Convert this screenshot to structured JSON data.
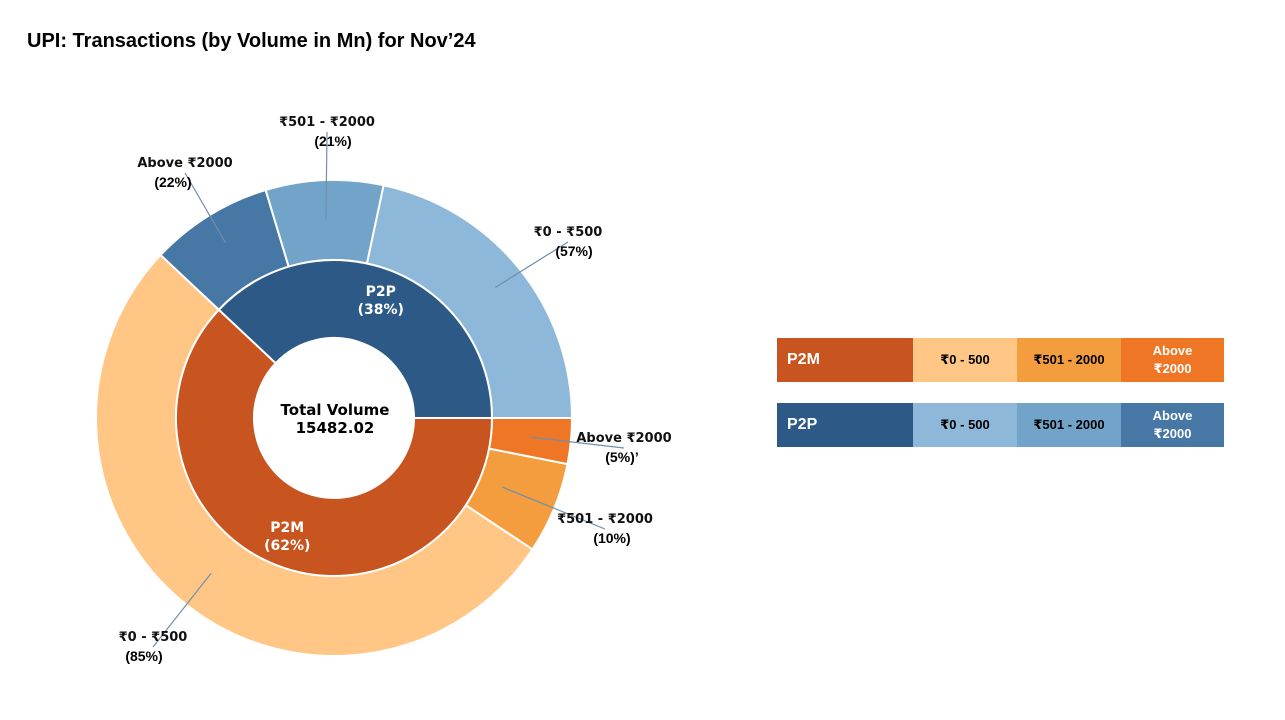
{
  "title": "UPI: Transactions (by Volume in Mn) for Nov’24",
  "center_label": {
    "line1": "Total Volume",
    "line2": "15482.02"
  },
  "colors": {
    "p2m": "#C8541F",
    "p2m_0_500": "#FFC685",
    "p2m_501_2000": "#F39D3F",
    "p2m_above_2000": "#EE7624",
    "p2p": "#2C5985",
    "p2p_0_500": "#8DB8DA",
    "p2p_501_2000": "#72A4CA",
    "p2p_above_2000": "#4777A5"
  },
  "chart_data": {
    "type": "pie",
    "variant": "nested-donut",
    "title": "UPI: Transactions (by Volume in Mn) for Nov’24",
    "total_volume": "15482.02",
    "inner": [
      {
        "label": "P2P",
        "pct_label": "(38%)",
        "value": 38
      },
      {
        "label": "P2M",
        "pct_label": "(62%)",
        "value": 62
      }
    ],
    "outer": [
      {
        "group": "P2P",
        "label": "₹0 - ₹500",
        "pct_label": "(57%)",
        "share_within_group": 57
      },
      {
        "group": "P2P",
        "label": "₹501 - ₹2000",
        "pct_label": "(21%)",
        "share_within_group": 21
      },
      {
        "group": "P2P",
        "label": "Above ₹2000",
        "pct_label": "(22%)",
        "share_within_group": 22
      },
      {
        "group": "P2M",
        "label": "₹0 - ₹500",
        "pct_label": "(85%)",
        "share_within_group": 85
      },
      {
        "group": "P2M",
        "label": "₹501 - ₹2000",
        "pct_label": "(10%)",
        "share_within_group": 10
      },
      {
        "group": "P2M",
        "label": "Above ₹2000",
        "pct_label": "(5%)’",
        "share_within_group": 5
      }
    ]
  },
  "legend": {
    "p2m": {
      "group": "P2M",
      "items": [
        "₹0 - 500",
        "₹501 - 2000",
        "Above\n₹2000"
      ]
    },
    "p2p": {
      "group": "P2P",
      "items": [
        "₹0 - 500",
        "₹501 - 2000",
        "Above\n₹2000"
      ]
    }
  }
}
